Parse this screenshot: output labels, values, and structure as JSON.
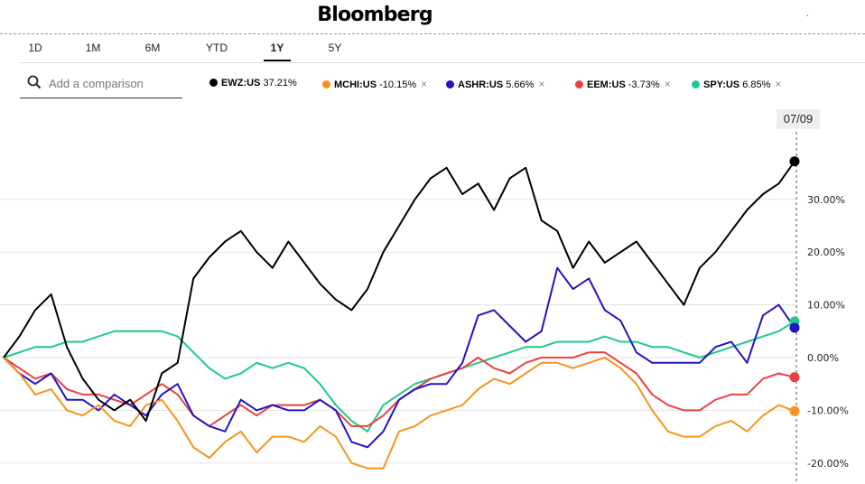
{
  "header": {
    "brand": "Bloomberg",
    "corner_mark": "."
  },
  "range_tabs": [
    {
      "label": "1D",
      "active": false
    },
    {
      "label": "1M",
      "active": false
    },
    {
      "label": "6M",
      "active": false
    },
    {
      "label": "YTD",
      "active": false
    },
    {
      "label": "1Y",
      "active": true
    },
    {
      "label": "5Y",
      "active": false
    }
  ],
  "search": {
    "placeholder": "Add a comparison"
  },
  "legend": [
    {
      "ticker": "EWZ:US",
      "change": "37.21%",
      "color": "#000000",
      "closable": false
    },
    {
      "ticker": "MCHI:US",
      "change": "-10.15%",
      "color": "#f7931e",
      "closable": true
    },
    {
      "ticker": "ASHR:US",
      "change": "5.66%",
      "color": "#2313c2",
      "closable": true
    },
    {
      "ticker": "EEM:US",
      "change": "-3.73%",
      "color": "#ec4040",
      "closable": true
    },
    {
      "ticker": "SPY:US",
      "change": "6.85%",
      "color": "#1fc98c",
      "closable": true
    }
  ],
  "date_badge": "07/09",
  "chart_data": {
    "type": "line",
    "title": "",
    "xlabel": "",
    "ylabel": "",
    "period": "1Y",
    "y_ticks": [
      {
        "value": 30,
        "label": "30.00%"
      },
      {
        "value": 20,
        "label": "20.00%"
      },
      {
        "value": 10,
        "label": "10.00%"
      },
      {
        "value": 0,
        "label": "0.00%"
      },
      {
        "value": -10,
        "label": "-10.00%"
      },
      {
        "value": -20,
        "label": "-20.00%"
      }
    ],
    "ylim": [
      -22,
      40
    ],
    "x": [
      0,
      2,
      4,
      6,
      8,
      10,
      12,
      14,
      16,
      18,
      20,
      22,
      24,
      26,
      28,
      30,
      32,
      34,
      36,
      38,
      40,
      42,
      44,
      46,
      48,
      50,
      52,
      54,
      56,
      58,
      60,
      62,
      64,
      66,
      68,
      70,
      72,
      74,
      76,
      78,
      80,
      82,
      84,
      86,
      88,
      90,
      92,
      94,
      96,
      98,
      100
    ],
    "series": [
      {
        "name": "EWZ:US",
        "color": "#000000",
        "values": [
          0,
          4,
          9,
          12,
          2,
          -4,
          -8,
          -10,
          -8,
          -12,
          -3,
          -1,
          15,
          19,
          22,
          24,
          20,
          17,
          22,
          18,
          14,
          11,
          9,
          13,
          20,
          25,
          30,
          34,
          36,
          31,
          33,
          28,
          34,
          36,
          26,
          24,
          17,
          22,
          18,
          20,
          22,
          18,
          14,
          10,
          17,
          20,
          24,
          28,
          31,
          33,
          37.21
        ]
      },
      {
        "name": "MCHI:US",
        "color": "#f7931e",
        "values": [
          0,
          -3,
          -7,
          -6,
          -10,
          -11,
          -9,
          -12,
          -13,
          -9,
          -8,
          -12,
          -17,
          -19,
          -16,
          -14,
          -18,
          -15,
          -15,
          -16,
          -13,
          -15,
          -20,
          -21,
          -21,
          -14,
          -13,
          -11,
          -10,
          -9,
          -6,
          -4,
          -5,
          -3,
          -1,
          -1,
          -2,
          -1,
          0,
          -2,
          -5,
          -10,
          -14,
          -15,
          -15,
          -13,
          -12,
          -14,
          -11,
          -9,
          -10.15
        ]
      },
      {
        "name": "ASHR:US",
        "color": "#2313c2",
        "values": [
          0,
          -3,
          -5,
          -3,
          -8,
          -8,
          -10,
          -7,
          -9,
          -11,
          -7,
          -5,
          -11,
          -13,
          -14,
          -8,
          -10,
          -9,
          -10,
          -10,
          -8,
          -10,
          -16,
          -17,
          -14,
          -8,
          -6,
          -5,
          -5,
          -1,
          8,
          9,
          6,
          3,
          5,
          17,
          13,
          15,
          9,
          7,
          1,
          -1,
          -1,
          -1,
          -1,
          2,
          3,
          -1,
          8,
          10,
          5.66
        ]
      },
      {
        "name": "EEM:US",
        "color": "#ec4040",
        "values": [
          0,
          -2,
          -4,
          -3,
          -6,
          -7,
          -7,
          -8,
          -9,
          -7,
          -5,
          -7,
          -11,
          -13,
          -11,
          -9,
          -11,
          -9,
          -9,
          -9,
          -8,
          -10,
          -13,
          -13,
          -11,
          -8,
          -6,
          -4,
          -3,
          -2,
          0,
          -2,
          -3,
          -1,
          0,
          0,
          0,
          1,
          1,
          -1,
          -3,
          -7,
          -9,
          -10,
          -10,
          -8,
          -7,
          -7,
          -4,
          -3,
          -3.73
        ]
      },
      {
        "name": "SPY:US",
        "color": "#1fc98c",
        "values": [
          0,
          1,
          2,
          2,
          3,
          3,
          4,
          5,
          5,
          5,
          5,
          4,
          1,
          -2,
          -4,
          -3,
          -1,
          -2,
          -1,
          -2,
          -5,
          -9,
          -12,
          -14,
          -9,
          -7,
          -5,
          -4,
          -3,
          -2,
          -1,
          0,
          1,
          2,
          2,
          3,
          3,
          3,
          4,
          3,
          3,
          2,
          2,
          1,
          0,
          1,
          2,
          3,
          4,
          5,
          6.85
        ]
      }
    ]
  }
}
